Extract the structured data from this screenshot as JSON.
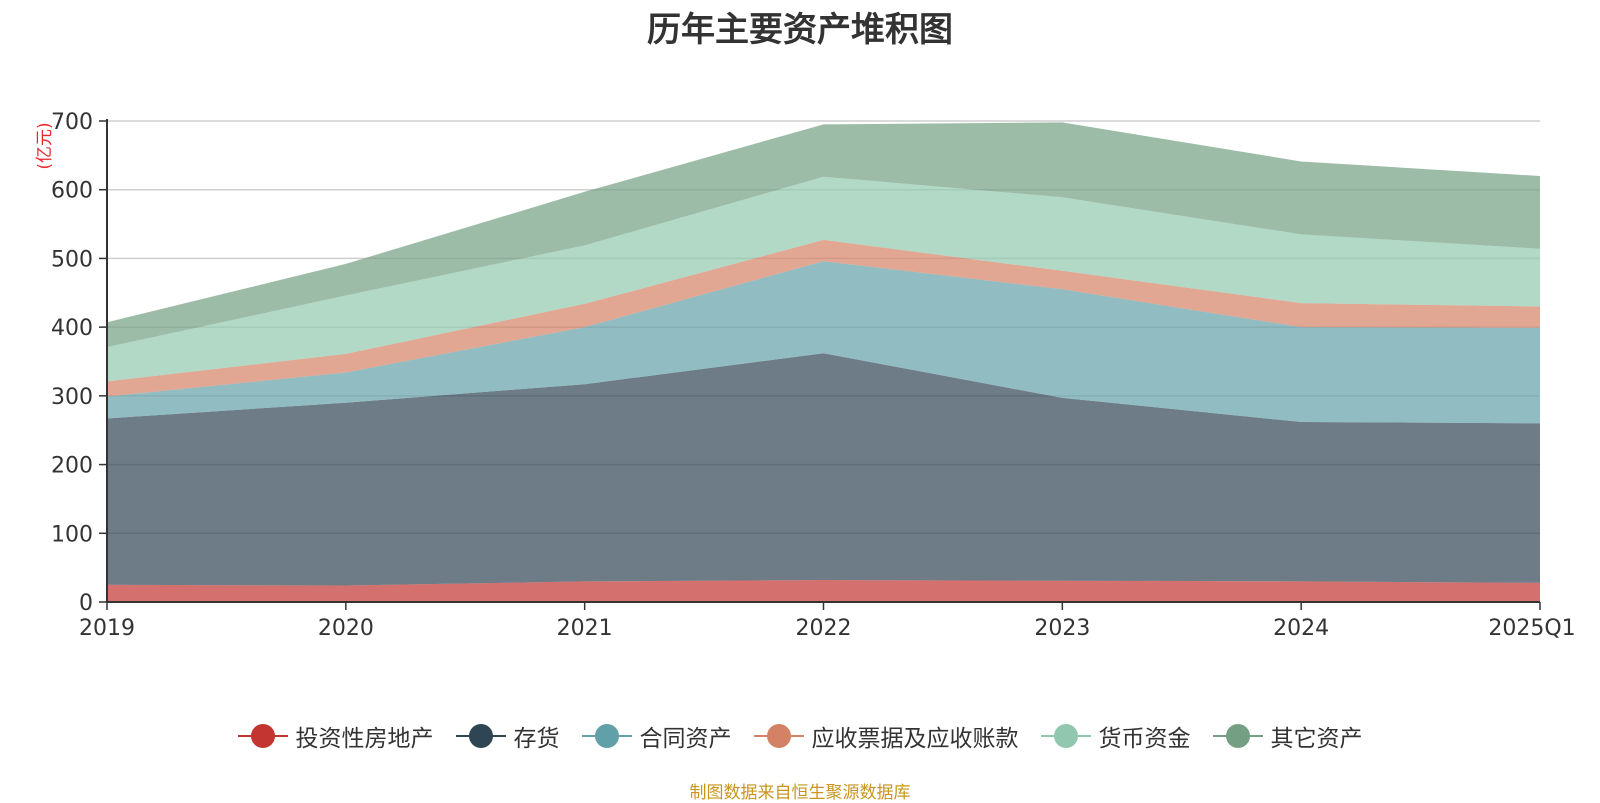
{
  "chart_data": {
    "type": "area",
    "stacked": true,
    "title": "历年主要资产堆积图",
    "unit": "(亿元)",
    "categories": [
      "2019",
      "2020",
      "2021",
      "2022",
      "2023",
      "2024",
      "2025Q1"
    ],
    "ylim": [
      0,
      700
    ],
    "yticks": [
      "0",
      "100",
      "200",
      "300",
      "400",
      "500",
      "600",
      "700"
    ],
    "grid": true,
    "legend_position": "bottom",
    "series": [
      {
        "name": "投资性房地产",
        "color": "#c23531",
        "values": [
          25,
          24,
          30,
          32,
          31,
          30,
          28
        ]
      },
      {
        "name": "存货",
        "color": "#2f4554",
        "values": [
          242,
          266,
          287,
          330,
          266,
          232,
          232
        ]
      },
      {
        "name": "合同资产",
        "color": "#61a0a8",
        "values": [
          32,
          44,
          83,
          134,
          158,
          138,
          139
        ]
      },
      {
        "name": "应收票据及应收账款",
        "color": "#d48265",
        "values": [
          22,
          27,
          34,
          31,
          27,
          35,
          31
        ]
      },
      {
        "name": "货币资金",
        "color": "#91c7ae",
        "values": [
          50,
          85,
          85,
          92,
          107,
          100,
          84
        ]
      },
      {
        "name": "其它资产",
        "color": "#749f83",
        "values": [
          36,
          46,
          78,
          76,
          109,
          106,
          106
        ]
      }
    ]
  },
  "footer": {
    "source": "制图数据来自恒生聚源数据库"
  }
}
